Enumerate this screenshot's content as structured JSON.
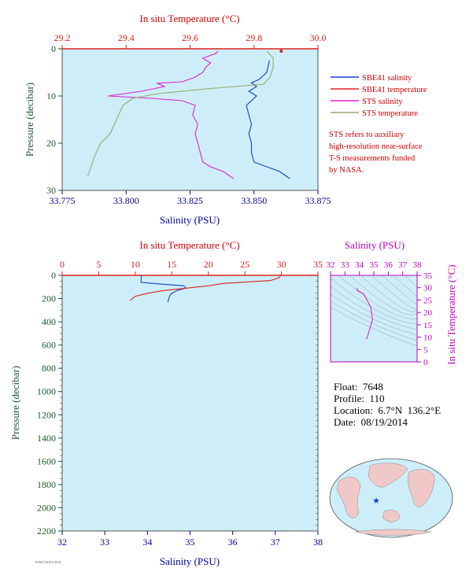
{
  "colors": {
    "plot_bg": "#cdeef8",
    "sbe41_salinity": "#1040c8",
    "sbe41_temperature": "#e02020",
    "sts_salinity": "#e020d0",
    "sts_temperature": "#98a870",
    "temperature_axis": "#e02020",
    "salinity_axis": "#0000a0",
    "pressure_axis": "#1a5a2a",
    "ts_axis": "#c000c0",
    "note": "#d00000"
  },
  "legend": {
    "items": [
      {
        "label": "SBE41 salinity",
        "color": "#1040c8"
      },
      {
        "label": "SBE41 temperature",
        "color": "#e02020"
      },
      {
        "label": "STS salinity",
        "color": "#e020d0"
      },
      {
        "label": "STS temperature",
        "color": "#98a870"
      }
    ],
    "note": [
      "STS refers to auxiliary",
      "high-resolution near-surface",
      "T-S measurements funded",
      "by NASA."
    ]
  },
  "info": {
    "float": "Float:  7648",
    "profile": "Profile:  110",
    "location": "Location:  6.7°N  136.2°E",
    "date": "Date:  08/19/2014"
  },
  "footer_text": "AOML/NOAA 2014",
  "chart_data": [
    {
      "id": "near_surface",
      "type": "line",
      "xlabel": "Salinity (PSU)",
      "x2label": "In situ Temperature (°C)",
      "ylabel": "Pressure (decibar)",
      "xlim": [
        33.775,
        33.875
      ],
      "x2lim": [
        29.2,
        30.0
      ],
      "ylim": [
        0,
        30
      ],
      "y_inverted": true,
      "xticks": [
        "33.775",
        "33.800",
        "33.825",
        "33.850",
        "33.875"
      ],
      "x2ticks": [
        "29.2",
        "29.4",
        "29.6",
        "29.8",
        "30.0"
      ],
      "yticks": [
        "0",
        "10",
        "20",
        "30"
      ],
      "series": [
        {
          "name": "SBE41 salinity",
          "axis": "x",
          "points": [
            [
              33.856,
              2.5
            ],
            [
              33.855,
              5
            ],
            [
              33.852,
              6.5
            ],
            [
              33.849,
              7.2
            ],
            [
              33.851,
              8
            ],
            [
              33.848,
              9
            ],
            [
              33.851,
              10
            ],
            [
              33.847,
              12
            ],
            [
              33.848,
              14
            ],
            [
              33.849,
              16
            ],
            [
              33.848,
              18
            ],
            [
              33.849,
              20
            ],
            [
              33.849,
              22
            ],
            [
              33.85,
              24
            ],
            [
              33.855,
              25
            ],
            [
              33.86,
              26
            ],
            [
              33.864,
              27.5
            ]
          ]
        },
        {
          "name": "SBE41 temperature",
          "axis": "x2",
          "points": [
            [
              29.885,
              0.5
            ]
          ]
        },
        {
          "name": "STS salinity",
          "axis": "x",
          "points": [
            [
              33.836,
              0.5
            ],
            [
              33.835,
              1
            ],
            [
              33.83,
              2
            ],
            [
              33.833,
              3
            ],
            [
              33.831,
              4
            ],
            [
              33.83,
              5
            ],
            [
              33.827,
              6
            ],
            [
              33.822,
              7
            ],
            [
              33.812,
              7.3
            ],
            [
              33.815,
              8
            ],
            [
              33.806,
              9
            ],
            [
              33.793,
              10
            ],
            [
              33.81,
              10.5
            ],
            [
              33.822,
              11
            ],
            [
              33.827,
              12
            ],
            [
              33.826,
              14
            ],
            [
              33.828,
              16
            ],
            [
              33.827,
              18
            ],
            [
              33.828,
              20
            ],
            [
              33.829,
              22
            ],
            [
              33.83,
              24
            ],
            [
              33.833,
              25
            ],
            [
              33.838,
              26
            ],
            [
              33.842,
              27.5
            ]
          ]
        },
        {
          "name": "STS temperature",
          "axis": "x2",
          "points": [
            [
              29.84,
              0.5
            ],
            [
              29.86,
              2
            ],
            [
              29.86,
              4
            ],
            [
              29.85,
              6
            ],
            [
              29.83,
              7.5
            ],
            [
              29.65,
              8.5
            ],
            [
              29.5,
              9.5
            ],
            [
              29.42,
              10.5
            ],
            [
              29.39,
              12
            ],
            [
              29.37,
              15
            ],
            [
              29.35,
              18
            ],
            [
              29.32,
              20
            ],
            [
              29.3,
              23
            ],
            [
              29.29,
              25
            ],
            [
              29.28,
              27
            ]
          ]
        }
      ]
    },
    {
      "id": "full_profile",
      "type": "line",
      "xlabel": "Salinity (PSU)",
      "x2label": "In situ Temperature (°C)",
      "ylabel": "Pressure (decibar)",
      "xlim": [
        32,
        38
      ],
      "x2lim": [
        0,
        35
      ],
      "ylim": [
        0,
        2200
      ],
      "y_inverted": true,
      "xticks": [
        "32",
        "33",
        "34",
        "35",
        "36",
        "37",
        "38"
      ],
      "x2ticks": [
        "0",
        "5",
        "10",
        "15",
        "20",
        "25",
        "30",
        "35"
      ],
      "yticks": [
        "0",
        "200",
        "400",
        "600",
        "800",
        "1000",
        "1200",
        "1400",
        "1600",
        "1800",
        "2000",
        "2200"
      ],
      "series": [
        {
          "name": "SBE41 salinity",
          "axis": "x",
          "points": [
            [
              33.86,
              0
            ],
            [
              33.85,
              40
            ],
            [
              33.85,
              60
            ],
            [
              34.3,
              75
            ],
            [
              34.85,
              90
            ],
            [
              34.9,
              110
            ],
            [
              34.7,
              130
            ],
            [
              34.55,
              160
            ],
            [
              34.5,
              200
            ],
            [
              34.48,
              230
            ]
          ]
        },
        {
          "name": "SBE41 temperature",
          "axis": "x2",
          "points": [
            [
              29.9,
              0
            ],
            [
              29.7,
              20
            ],
            [
              28.5,
              45
            ],
            [
              22,
              70
            ],
            [
              20,
              90
            ],
            [
              17,
              110
            ],
            [
              14,
              130
            ],
            [
              12,
              150
            ],
            [
              10,
              180
            ],
            [
              9.3,
              215
            ]
          ]
        }
      ]
    },
    {
      "id": "ts_diagram",
      "type": "line",
      "xlabel": "Salinity (PSU)",
      "ylabel": "In situ Temperature (°C)",
      "xlim": [
        32,
        38
      ],
      "ylim": [
        0,
        35
      ],
      "xticks": [
        "32",
        "33",
        "34",
        "35",
        "36",
        "37",
        "38"
      ],
      "yticks": [
        "0",
        "5",
        "10",
        "15",
        "20",
        "25",
        "30",
        "35"
      ],
      "series": [
        {
          "name": "SBE41",
          "points": [
            [
              33.85,
              29.9
            ],
            [
              33.85,
              29.0
            ],
            [
              34.3,
              27.5
            ],
            [
              34.8,
              22
            ],
            [
              34.9,
              17
            ],
            [
              34.7,
              13
            ],
            [
              34.55,
              10
            ],
            [
              34.5,
              9.3
            ]
          ]
        }
      ]
    }
  ]
}
